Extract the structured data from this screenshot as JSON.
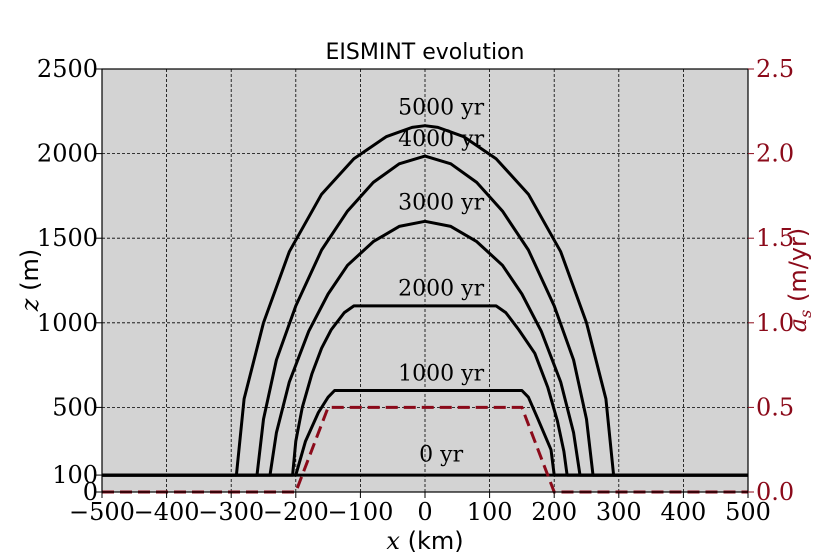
{
  "chart_data": {
    "type": "line",
    "title": "EISMINT evolution",
    "xlabel": {
      "var": "x",
      "unit": " (km)"
    },
    "ylabel": {
      "var": "z",
      "unit": " (m)"
    },
    "y2label": {
      "var": "a",
      "sub": "s",
      "unit": " (m/yr)"
    },
    "xlim": [
      -500,
      500
    ],
    "ylim": [
      0,
      2500
    ],
    "y2lim": [
      0,
      2.5
    ],
    "xticks": [
      -500,
      -400,
      -300,
      -200,
      -100,
      0,
      100,
      200,
      300,
      400,
      500
    ],
    "xtick_labels": [
      "−500",
      "−400",
      "−300",
      "−200",
      "−100",
      "0",
      "100",
      "200",
      "300",
      "400",
      "500"
    ],
    "yticks": [
      0,
      100,
      500,
      1000,
      1500,
      2000,
      2500
    ],
    "ytick_labels": [
      "0",
      "100",
      "500",
      "1000",
      "1500",
      "2000",
      "2500"
    ],
    "gridlines_y": [
      0,
      500,
      1000,
      1500,
      2000,
      2500
    ],
    "y2ticks": [
      0,
      0.5,
      1.0,
      1.5,
      2.0,
      2.5
    ],
    "y2tick_labels": [
      "0.0",
      "0.5",
      "1.0",
      "1.5",
      "2.0",
      "2.5"
    ],
    "grid": true,
    "background_color": "#d3d3d3",
    "accent_color": "#8b0a1a",
    "series": [
      {
        "label": "0 yr",
        "label_x": 25,
        "label_y": 180,
        "x": [
          -500,
          500
        ],
        "y": [
          100,
          100
        ]
      },
      {
        "label": "1000 yr",
        "label_x": 25,
        "label_y": 660,
        "x": [
          -500,
          -200,
          -185,
          -165,
          -150,
          -140,
          -120,
          150,
          160,
          175,
          195,
          200,
          500
        ],
        "y": [
          100,
          100,
          300,
          470,
          560,
          600,
          600,
          600,
          560,
          430,
          250,
          100,
          100
        ]
      },
      {
        "label": "2000 yr",
        "label_x": 25,
        "label_y": 1160,
        "x": [
          -500,
          -205,
          -200,
          -190,
          -175,
          -160,
          -145,
          -125,
          -110,
          110,
          125,
          145,
          170,
          190,
          205,
          215,
          220,
          500
        ],
        "y": [
          100,
          100,
          300,
          500,
          700,
          850,
          960,
          1060,
          1100,
          1100,
          1060,
          960,
          820,
          620,
          420,
          240,
          100,
          100
        ]
      },
      {
        "label": "3000 yr",
        "label_x": 25,
        "label_y": 1670,
        "x": [
          -500,
          -240,
          -230,
          -210,
          -180,
          -150,
          -120,
          -80,
          -40,
          0,
          40,
          80,
          120,
          150,
          180,
          210,
          230,
          240,
          500
        ],
        "y": [
          100,
          100,
          350,
          650,
          950,
          1170,
          1340,
          1480,
          1570,
          1600,
          1570,
          1480,
          1340,
          1170,
          950,
          650,
          350,
          100,
          100
        ]
      },
      {
        "label": "4000 yr",
        "label_x": 25,
        "label_y": 2045,
        "x": [
          -500,
          -260,
          -250,
          -230,
          -200,
          -160,
          -120,
          -80,
          -40,
          0,
          40,
          80,
          120,
          160,
          200,
          230,
          250,
          260,
          500
        ],
        "y": [
          100,
          100,
          430,
          780,
          1100,
          1430,
          1660,
          1830,
          1940,
          1985,
          1940,
          1830,
          1660,
          1430,
          1100,
          780,
          430,
          100,
          100
        ]
      },
      {
        "label": "5000 yr",
        "label_x": 25,
        "label_y": 2230,
        "x": [
          -500,
          -292,
          -280,
          -250,
          -210,
          -160,
          -110,
          -60,
          -20,
          0,
          20,
          60,
          110,
          160,
          210,
          250,
          280,
          292,
          500
        ],
        "y": [
          100,
          100,
          550,
          1000,
          1420,
          1760,
          1970,
          2100,
          2155,
          2165,
          2155,
          2100,
          1970,
          1760,
          1420,
          1000,
          550,
          100,
          100
        ]
      }
    ],
    "accumulation": {
      "axis": "right",
      "style": "dashed",
      "x": [
        -500,
        -200,
        -150,
        150,
        200,
        500
      ],
      "y": [
        0,
        0,
        0.5,
        0.5,
        0,
        0
      ]
    }
  }
}
